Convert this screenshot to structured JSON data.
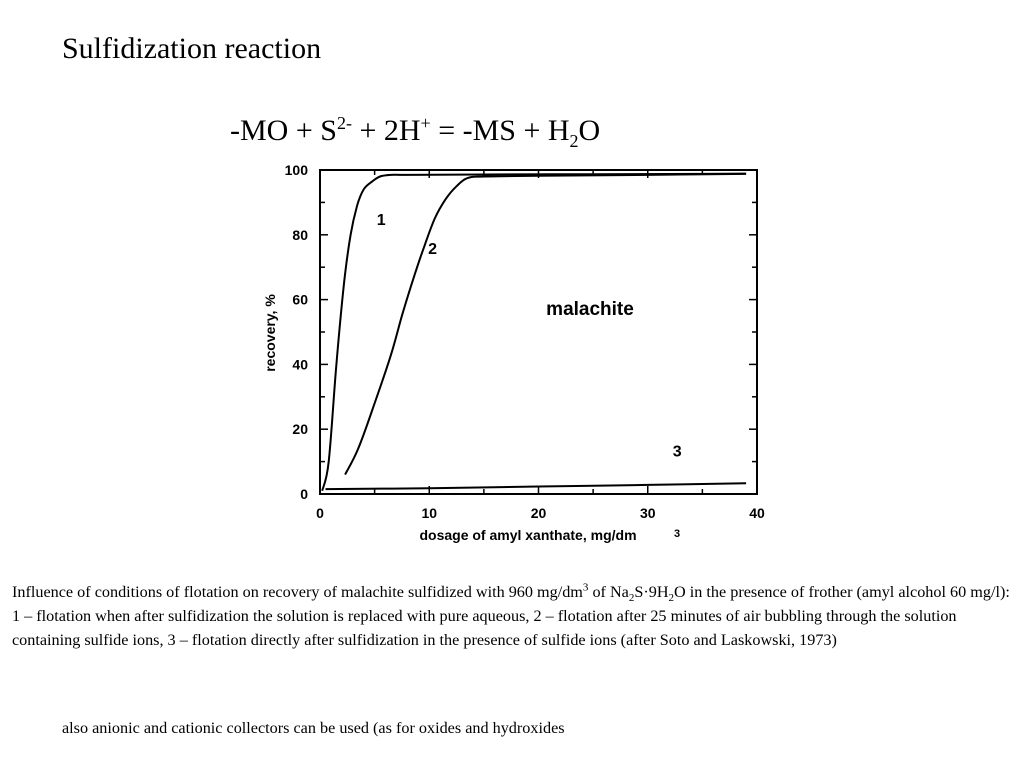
{
  "slide": {
    "title": "Sulfidization reaction",
    "equation": {
      "p1": "-MO + S",
      "sup1": "2-",
      "p2": " + 2H",
      "sup2": "+",
      "p3": " = -MS + H",
      "sub1": "2",
      "p4": "O"
    },
    "caption": {
      "p1": "Influence of conditions of flotation on recovery of  malachite sulfidized with 960 mg/dm",
      "sup1": "3",
      "p2": " of Na",
      "sub1": "2",
      "p3": "S·9H",
      "sub2": "2",
      "p4": "O in the presence of frother (amyl alcohol 60 mg/l): 1 – flotation when after sulfidization the solution is replaced with pure aqueous, 2 – flotation after 25 minutes of  air bubbling through the solution containing sulfide ions, 3 – flotation directly after sulfidization in the presence of sulfide ions (after  Soto and Laskowski, 1973)"
    },
    "footnote": "also anionic and cationic collectors can be used  (as for oxides and hydroxides"
  },
  "chart_data": {
    "type": "line",
    "title": "",
    "xlabel": "dosage of amyl xanthate, mg/dm",
    "xlabel_superscript": "3",
    "ylabel": "recovery, %",
    "xlim": [
      0,
      40
    ],
    "ylim": [
      0,
      100
    ],
    "x_ticks": [
      0,
      10,
      20,
      30,
      40
    ],
    "y_ticks": [
      0,
      20,
      40,
      60,
      80,
      100
    ],
    "grid": false,
    "annotation": "malachite",
    "series": [
      {
        "name": "1",
        "x": [
          0.2,
          0.8,
          1.5,
          2.2,
          2.8,
          3.4,
          4.0,
          4.8,
          5.5,
          6.5,
          8,
          15,
          25,
          35,
          39
        ],
        "y": [
          1,
          10,
          40,
          65,
          80,
          89,
          94,
          96.5,
          98,
          98.5,
          98.5,
          98.6,
          98.7,
          98.8,
          98.9
        ]
      },
      {
        "name": "2",
        "x": [
          2.3,
          3.5,
          5,
          6.5,
          7.5,
          8.5,
          9.5,
          10.5,
          11.5,
          12.5,
          13.5,
          15,
          20,
          30,
          39
        ],
        "y": [
          6,
          14,
          28,
          43,
          55,
          66,
          76,
          85,
          91,
          95,
          97.5,
          98,
          98.2,
          98.5,
          98.8
        ]
      },
      {
        "name": "3",
        "x": [
          0.5,
          10,
          20,
          30,
          39
        ],
        "y": [
          1.5,
          1.8,
          2.3,
          2.8,
          3.3
        ]
      }
    ]
  }
}
